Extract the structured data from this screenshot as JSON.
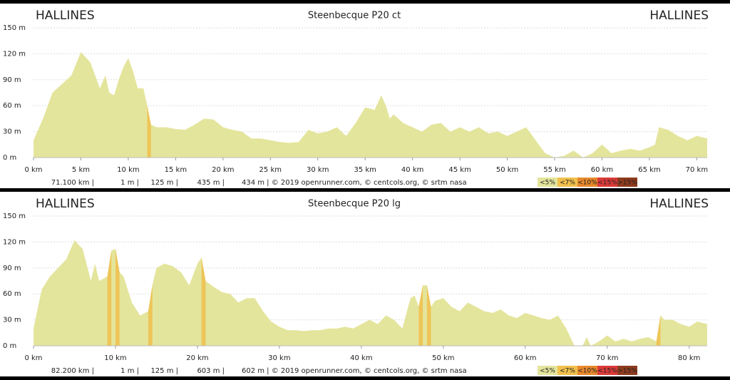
{
  "chart_data": [
    {
      "type": "area",
      "title": "Steenbecque P20 ct",
      "start_label": "HALLINES",
      "end_label": "HALLINES",
      "x": [
        0,
        1,
        2,
        3,
        4,
        5,
        6,
        7,
        7.6,
        8,
        8.5,
        9,
        9.5,
        10,
        10.5,
        11,
        11.6,
        12,
        12.4,
        13,
        14,
        15,
        16,
        17,
        18,
        19,
        20,
        21,
        22,
        23,
        24,
        25,
        26,
        27,
        28,
        29,
        30,
        31,
        32,
        33,
        34,
        35,
        36,
        36.7,
        37.2,
        37.6,
        38,
        39,
        40,
        41,
        42,
        43,
        44,
        45,
        46,
        47,
        48,
        49,
        50,
        51,
        52,
        53,
        54,
        55,
        56,
        57,
        58,
        59,
        60,
        61,
        62,
        63,
        64,
        65,
        65.6,
        66,
        67,
        68,
        69,
        70,
        71.1
      ],
      "values": [
        20,
        45,
        75,
        85,
        95,
        122,
        110,
        80,
        95,
        75,
        72,
        90,
        105,
        115,
        100,
        80,
        80,
        60,
        38,
        35,
        35,
        33,
        32,
        38,
        45,
        44,
        35,
        32,
        30,
        22,
        22,
        20,
        18,
        17,
        18,
        32,
        28,
        30,
        35,
        25,
        40,
        58,
        55,
        72,
        60,
        45,
        50,
        40,
        35,
        30,
        38,
        40,
        30,
        35,
        30,
        35,
        28,
        30,
        25,
        30,
        35,
        20,
        5,
        0,
        2,
        8,
        0,
        5,
        15,
        5,
        8,
        10,
        8,
        12,
        15,
        35,
        32,
        25,
        20,
        25,
        22
      ],
      "color": "#e4e59c",
      "xlim": [
        0,
        71.1
      ],
      "ylim": [
        0,
        150
      ],
      "xticks": [
        {
          "value": 0,
          "label": "0 km"
        },
        {
          "value": 5,
          "label": "5 km"
        },
        {
          "value": 10,
          "label": "10 km"
        },
        {
          "value": 15,
          "label": "15 km"
        },
        {
          "value": 20,
          "label": "20 km"
        },
        {
          "value": 25,
          "label": "25 km"
        },
        {
          "value": 30,
          "label": "30 km"
        },
        {
          "value": 35,
          "label": "35 km"
        },
        {
          "value": 40,
          "label": "40 km"
        },
        {
          "value": 45,
          "label": "45 km"
        },
        {
          "value": 50,
          "label": "50 km"
        },
        {
          "value": 55,
          "label": "55 km"
        },
        {
          "value": 60,
          "label": "60 km"
        },
        {
          "value": 65,
          "label": "65 km"
        },
        {
          "value": 70,
          "label": "70 km"
        }
      ],
      "yticks": [
        {
          "value": 0,
          "label": "0 m"
        },
        {
          "value": 30,
          "label": "30 m"
        },
        {
          "value": 60,
          "label": "60 m"
        },
        {
          "value": 90,
          "label": "90 m"
        },
        {
          "value": 120,
          "label": "120 m"
        },
        {
          "value": 150,
          "label": "150 m"
        }
      ],
      "grid": true,
      "stats": [
        "71.100 km |",
        "1 m |",
        "125 m |",
        "435 m |",
        "434 m | © 2019 openrunner.com, © centcols.org, © srtm nasa"
      ],
      "legend": [
        {
          "label": "<5%",
          "value": 5,
          "color": "#e4e59c"
        },
        {
          "label": "<7%",
          "value": 7,
          "color": "#f0c04c"
        },
        {
          "label": "<10%",
          "value": 10,
          "color": "#e8892c"
        },
        {
          "label": "<15%",
          "value": 15,
          "color": "#dd3a3a"
        },
        {
          "label": ">15%",
          "value": 15,
          "color": "#8e3b1e"
        }
      ]
    },
    {
      "type": "area",
      "title": "Steenbecque P20 lg",
      "start_label": "HALLINES",
      "end_label": "HALLINES",
      "x": [
        0,
        1,
        2,
        3,
        4,
        5,
        6,
        7,
        7.5,
        8,
        9,
        9.5,
        10,
        10.5,
        11,
        12,
        13,
        14,
        14.5,
        15,
        16,
        17,
        18,
        19,
        20,
        20.5,
        21,
        22,
        23,
        24,
        25,
        26,
        27,
        28,
        29,
        30,
        31,
        32,
        33,
        34,
        35,
        36,
        37,
        38,
        39,
        40,
        41,
        42,
        43,
        44,
        45,
        46,
        46.5,
        47,
        47.5,
        48,
        48.5,
        49,
        50,
        51,
        52,
        53,
        54,
        55,
        56,
        57,
        58,
        59,
        60,
        61,
        62,
        63,
        64,
        65,
        66,
        67,
        67.5,
        68,
        69,
        70,
        71,
        72,
        73,
        74,
        75,
        76,
        76.5,
        77,
        78,
        79,
        80,
        81,
        82.2
      ],
      "values": [
        20,
        65,
        80,
        90,
        100,
        122,
        112,
        75,
        95,
        75,
        80,
        110,
        112,
        85,
        80,
        50,
        35,
        40,
        70,
        90,
        95,
        92,
        85,
        70,
        95,
        102,
        75,
        68,
        62,
        60,
        50,
        55,
        55,
        40,
        28,
        22,
        18,
        18,
        17,
        18,
        18,
        20,
        20,
        22,
        20,
        25,
        30,
        25,
        35,
        30,
        20,
        55,
        58,
        45,
        70,
        70,
        45,
        52,
        55,
        45,
        40,
        50,
        45,
        40,
        38,
        42,
        35,
        32,
        38,
        35,
        32,
        30,
        35,
        20,
        0,
        0,
        10,
        0,
        5,
        12,
        5,
        8,
        5,
        8,
        10,
        5,
        35,
        30,
        30,
        25,
        22,
        28,
        25
      ],
      "color": "#e4e59c",
      "xlim": [
        0,
        82.2
      ],
      "ylim": [
        0,
        150
      ],
      "xticks": [
        {
          "value": 0,
          "label": "0 km"
        },
        {
          "value": 10,
          "label": "10 km"
        },
        {
          "value": 20,
          "label": "20 km"
        },
        {
          "value": 30,
          "label": "30 km"
        },
        {
          "value": 40,
          "label": "40 km"
        },
        {
          "value": 50,
          "label": "50 km"
        },
        {
          "value": 60,
          "label": "60 km"
        },
        {
          "value": 70,
          "label": "70 km"
        },
        {
          "value": 80,
          "label": "80 km"
        }
      ],
      "yticks": [
        {
          "value": 0,
          "label": "0 m"
        },
        {
          "value": 30,
          "label": "30 m"
        },
        {
          "value": 60,
          "label": "60 m"
        },
        {
          "value": 90,
          "label": "90 m"
        },
        {
          "value": 120,
          "label": "120 m"
        },
        {
          "value": 150,
          "label": "150 m"
        }
      ],
      "grid": true,
      "stats": [
        "82.200 km |",
        "1 m |",
        "125 m |",
        "603 m |",
        "602 m | © 2019 openrunner.com, © centcols.org, © srtm nasa"
      ],
      "legend": [
        {
          "label": "<5%",
          "value": 5,
          "color": "#e4e59c"
        },
        {
          "label": "<7%",
          "value": 7,
          "color": "#f0c04c"
        },
        {
          "label": "<10%",
          "value": 10,
          "color": "#e8892c"
        },
        {
          "label": "<15%",
          "value": 15,
          "color": "#dd3a3a"
        },
        {
          "label": ">15%",
          "value": 15,
          "color": "#8e3b1e"
        }
      ]
    }
  ]
}
